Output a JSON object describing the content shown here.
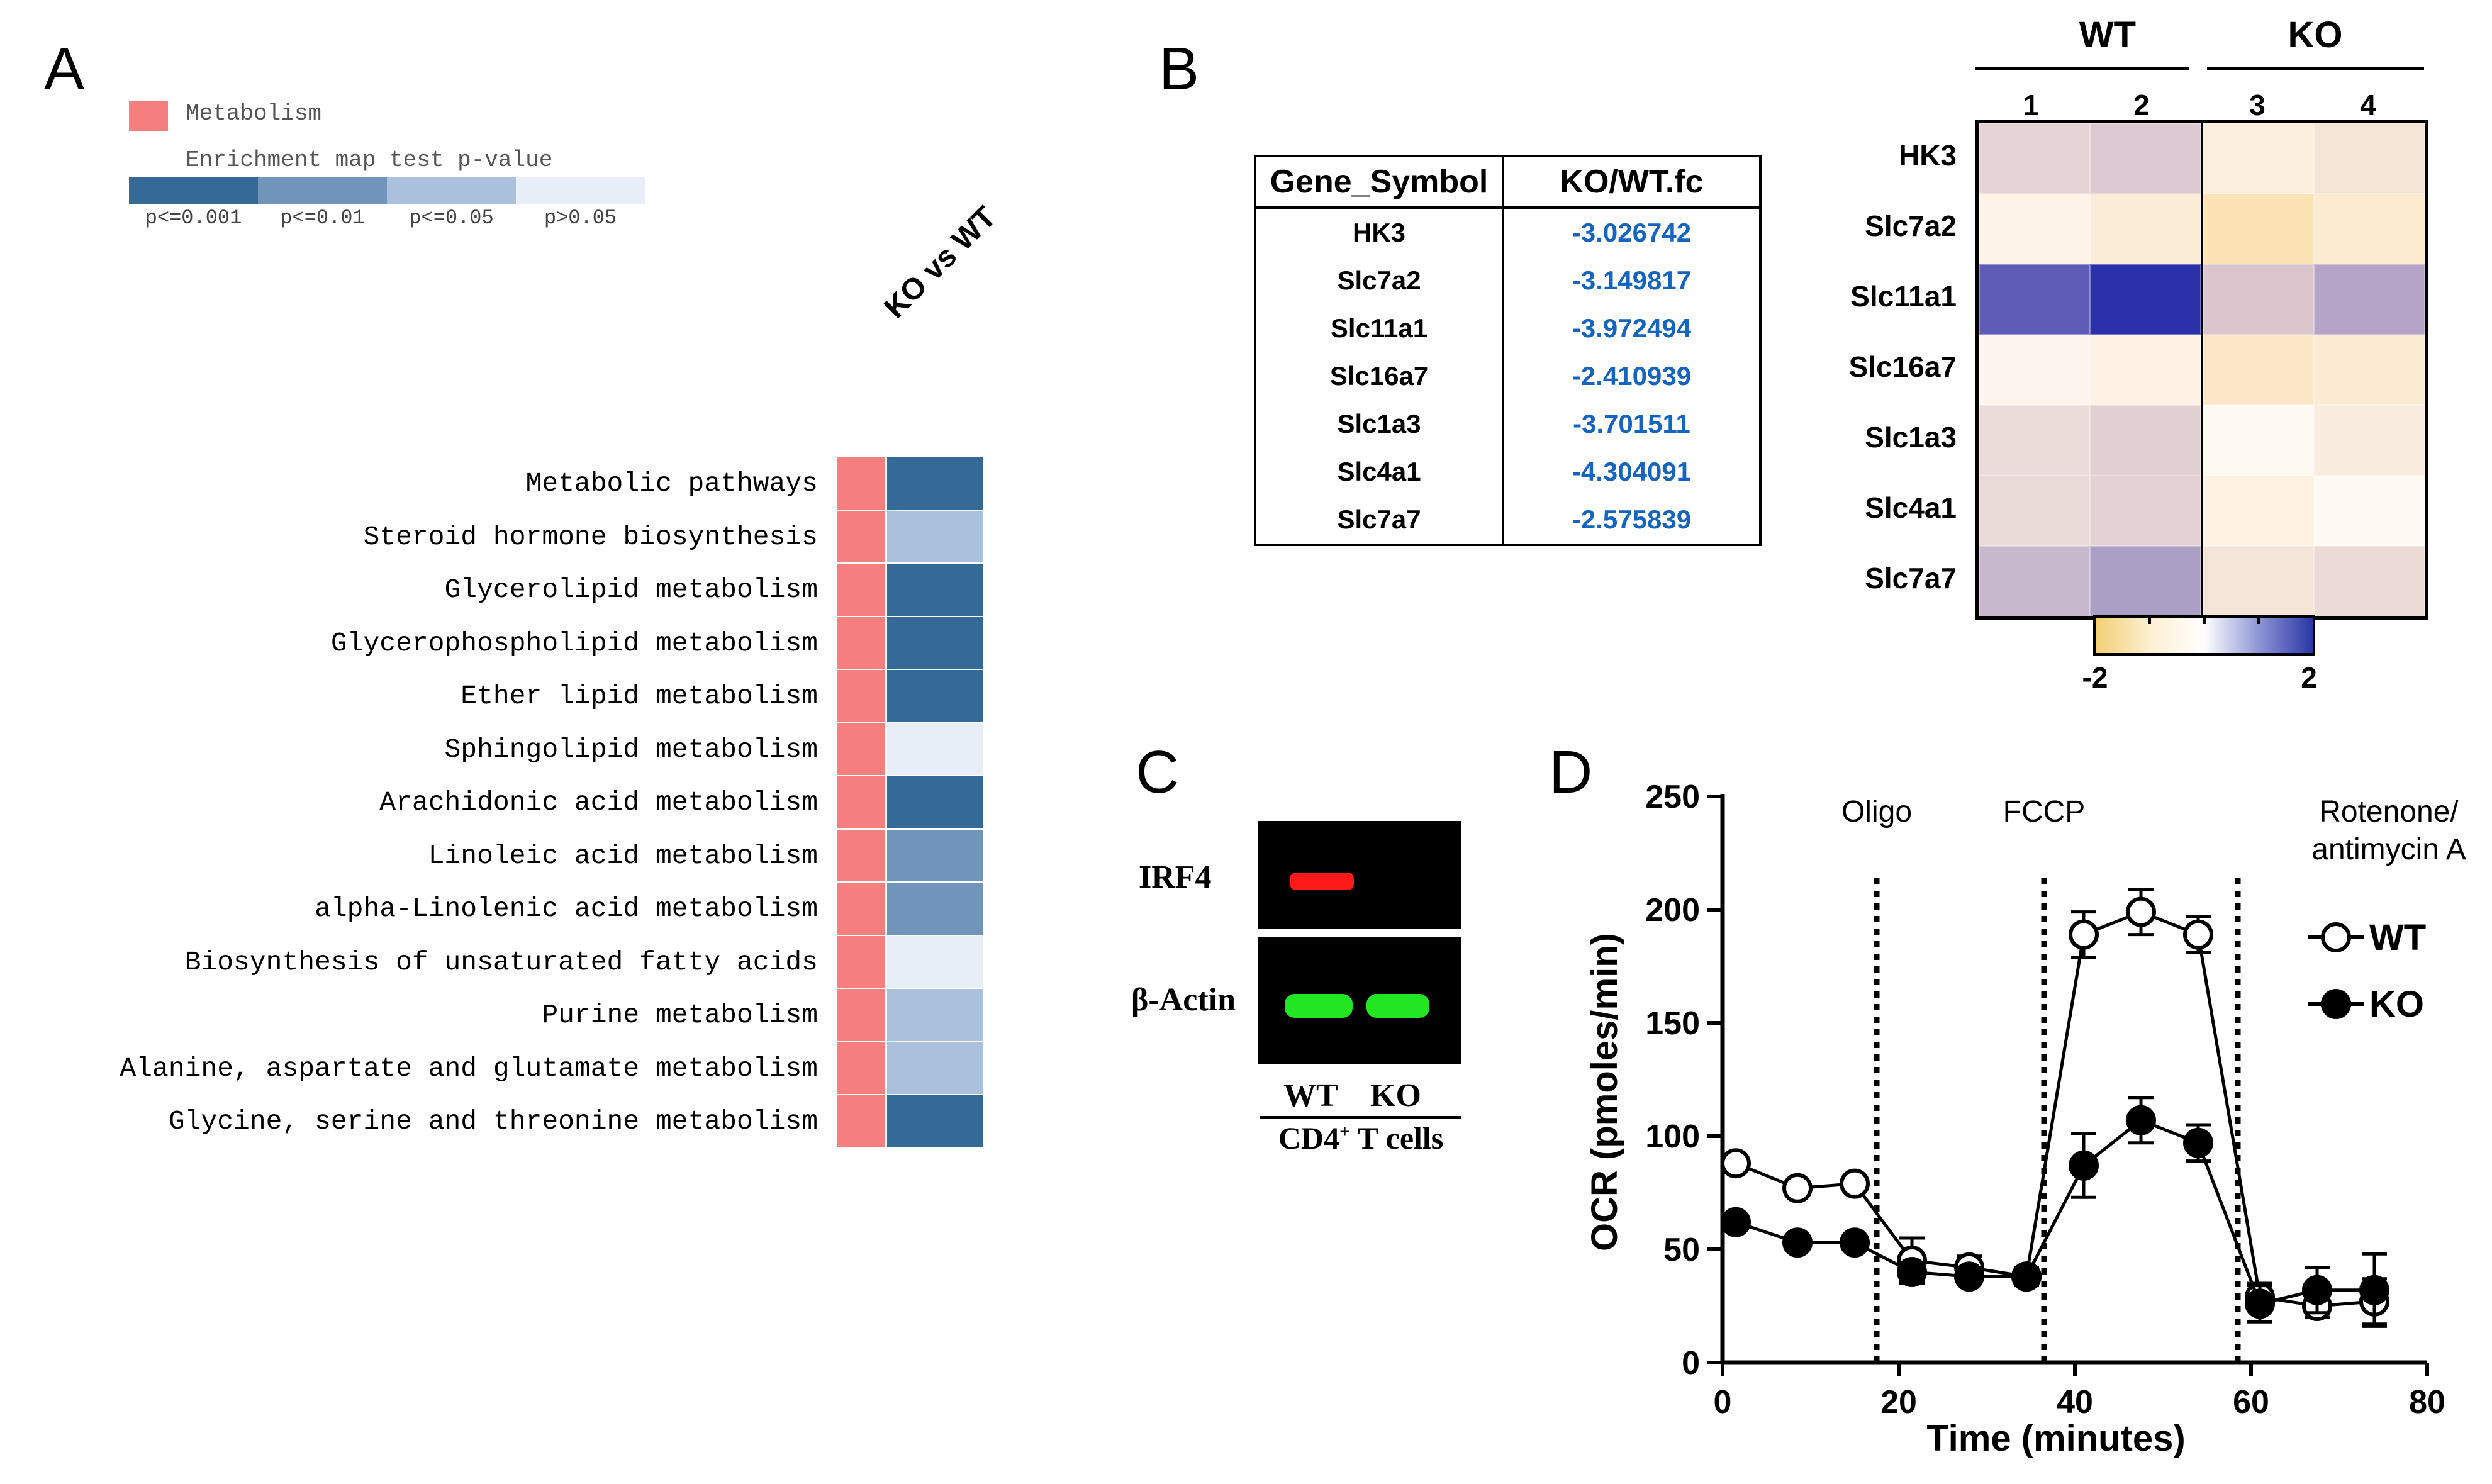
{
  "panels": {
    "a": "A",
    "b": "B",
    "c": "C",
    "d": "D"
  },
  "panel_a": {
    "legend_category": "Metabolism",
    "legend_title": "Enrichment map test p-value",
    "pvalue_bins": [
      {
        "label": "p<=0.001",
        "color": "#356a96"
      },
      {
        "label": "p<=0.01",
        "color": "#7094ba"
      },
      {
        "label": "p<=0.05",
        "color": "#aac0dc"
      },
      {
        "label": "p>0.05",
        "color": "#e8eef8"
      }
    ],
    "category_color": "#f57f7f",
    "column_label": "KO vs WT",
    "pathways": [
      {
        "name": "Metabolic pathways",
        "bin": 0
      },
      {
        "name": "Steroid hormone biosynthesis",
        "bin": 2
      },
      {
        "name": "Glycerolipid metabolism",
        "bin": 0
      },
      {
        "name": "Glycerophospholipid metabolism",
        "bin": 0
      },
      {
        "name": "Ether lipid metabolism",
        "bin": 0
      },
      {
        "name": "Sphingolipid metabolism",
        "bin": 3
      },
      {
        "name": "Arachidonic acid metabolism",
        "bin": 0
      },
      {
        "name": "Linoleic acid metabolism",
        "bin": 1
      },
      {
        "name": "alpha-Linolenic acid metabolism",
        "bin": 1
      },
      {
        "name": "Biosynthesis of unsaturated fatty acids",
        "bin": 3
      },
      {
        "name": "Purine metabolism",
        "bin": 2
      },
      {
        "name": "Alanine, aspartate and glutamate metabolism",
        "bin": 2
      },
      {
        "name": "Glycine, serine and threonine metabolism",
        "bin": 0
      }
    ]
  },
  "panel_b": {
    "table_headers": [
      "Gene_Symbol",
      "KO/WT.fc"
    ],
    "table_rows": [
      {
        "gene": "HK3",
        "fc": "-3.026742"
      },
      {
        "gene": "Slc7a2",
        "fc": "-3.149817"
      },
      {
        "gene": "Slc11a1",
        "fc": "-3.972494"
      },
      {
        "gene": "Slc16a7",
        "fc": "-2.410939"
      },
      {
        "gene": "Slc1a3",
        "fc": "-3.701511"
      },
      {
        "gene": "Slc4a1",
        "fc": "-4.304091"
      },
      {
        "gene": "Slc7a7",
        "fc": "-2.575839"
      }
    ],
    "heatmap": {
      "group_labels": [
        "WT",
        "KO"
      ],
      "sample_labels": [
        "1",
        "2",
        "3",
        "4"
      ],
      "genes": [
        "HK3",
        "Slc7a2",
        "Slc11a1",
        "Slc16a7",
        "Slc1a3",
        "Slc4a1",
        "Slc7a7"
      ],
      "colors": [
        [
          "#e6d3d6",
          "#ddc9d1",
          "#fbeedc",
          "#f3e4d6"
        ],
        [
          "#fdf3e6",
          "#fbecd8",
          "#fbe3b6",
          "#fcebcf"
        ],
        [
          "#5f5cb8",
          "#2b2fa9",
          "#d9c5cb",
          "#b6a4c8"
        ],
        [
          "#fef6ee",
          "#fef2e4",
          "#fbe7c8",
          "#fcebd3"
        ],
        [
          "#eaddda",
          "#e2d0d2",
          "#fef9f1",
          "#f8ecdf"
        ],
        [
          "#eadbd8",
          "#e4d1d3",
          "#fdf1e2",
          "#fefaf3"
        ],
        [
          "#c7b8cd",
          "#ac9fc6",
          "#f3e4d7",
          "#ecdad7"
        ]
      ],
      "colorbar_min": "-2",
      "colorbar_max": "2",
      "colorbar_colors": [
        "#f3cf72",
        "#fbf0d2",
        "#ffffff",
        "#8f97d6",
        "#2b37a6"
      ]
    }
  },
  "panel_c": {
    "band_labels": [
      "IRF4",
      "β-Actin"
    ],
    "lane_labels": [
      "WT",
      "KO"
    ],
    "cell_label_pre": "CD4",
    "cell_label_sup": "+",
    "cell_label_post": " T cells",
    "irf4_color": "#ff1a1a",
    "actin_color": "#22e622"
  },
  "chart_data": {
    "type": "line",
    "title": "",
    "xlabel": "Time (minutes)",
    "ylabel": "OCR (pmoles/min)",
    "xlim": [
      0,
      80
    ],
    "ylim": [
      0,
      250
    ],
    "xticks": [
      0,
      20,
      40,
      60,
      80
    ],
    "yticks": [
      0,
      50,
      100,
      150,
      200,
      250
    ],
    "injections": [
      {
        "label": "Oligo",
        "x": 17.5
      },
      {
        "label": "FCCP",
        "x": 36.5
      },
      {
        "label": "Rotenone/",
        "label2": "antimycin A",
        "x": 58.5
      }
    ],
    "series": [
      {
        "name": "WT",
        "marker": "open-circle",
        "x": [
          1.5,
          8.5,
          15,
          21.5,
          28,
          34.5,
          41,
          47.5,
          54,
          61,
          67.5,
          74
        ],
        "y": [
          88,
          77,
          79,
          45,
          42,
          38,
          189,
          199,
          189,
          29,
          25,
          27
        ],
        "err": [
          3,
          3,
          3,
          10,
          5,
          4,
          10,
          10,
          8,
          6,
          5,
          10
        ]
      },
      {
        "name": "KO",
        "marker": "filled-circle",
        "x": [
          1.5,
          8.5,
          15,
          21.5,
          28,
          34.5,
          41,
          47.5,
          54,
          61,
          67.5,
          74
        ],
        "y": [
          62,
          53,
          53,
          40,
          38,
          38,
          87,
          107,
          97,
          26,
          32,
          32
        ],
        "err": [
          3,
          3,
          3,
          4,
          3,
          3,
          14,
          10,
          8,
          8,
          10,
          16
        ]
      }
    ]
  }
}
